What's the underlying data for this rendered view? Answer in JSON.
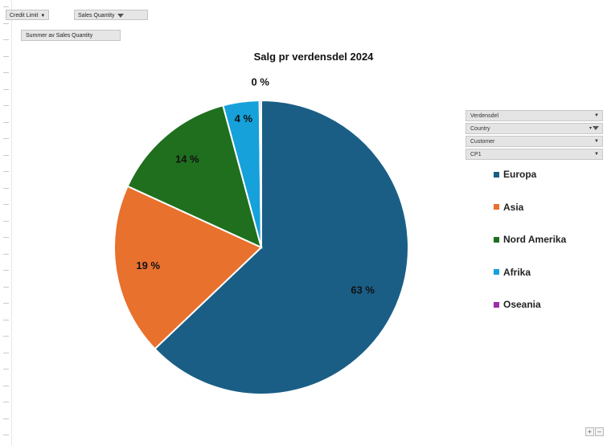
{
  "filters": {
    "credit_limit": "Credit Limit",
    "sales_quantity": "Sales Quantity"
  },
  "values_field": "Summer av Sales Quantity",
  "axis_fields": [
    {
      "label": "Verdensdel",
      "icon": "dropdown-arrow-icon"
    },
    {
      "label": "Country",
      "icon": "filter-icon"
    },
    {
      "label": "Customer",
      "icon": "dropdown-arrow-icon"
    },
    {
      "label": "CP1",
      "icon": "dropdown-arrow-icon"
    }
  ],
  "zoom_controls": {
    "plus": "+",
    "minus": "–"
  },
  "colors": {
    "Europa": "#1a5e86",
    "Asia": "#e8712d",
    "Nord Amerika": "#1f6f1e",
    "Afrika": "#16a1db",
    "Oseania": "#9b2fa5"
  },
  "chart_data": {
    "type": "pie",
    "title": "Salg pr verdensdel 2024",
    "categories": [
      "Europa",
      "Asia",
      "Nord Amerika",
      "Afrika",
      "Oseania"
    ],
    "values": [
      63,
      19,
      14,
      4,
      0.2
    ],
    "data_labels": [
      "63 %",
      "19 %",
      "14 %",
      "4 %",
      "0 %"
    ],
    "legend_position": "right"
  }
}
